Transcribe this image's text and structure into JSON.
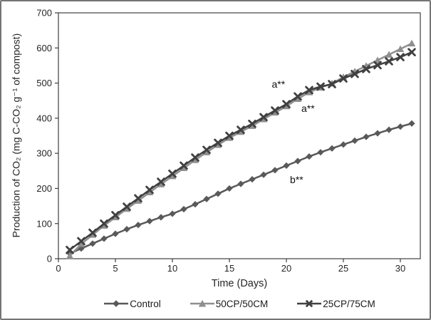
{
  "chart_data": {
    "type": "line",
    "title": "",
    "xlabel": "Time (Days)",
    "ylabel": "Production of CO₂ (mg C-CO₂ g⁻¹ of compost)",
    "xlim": [
      0,
      31.75
    ],
    "ylim": [
      0,
      700
    ],
    "x_ticks": [
      0,
      5,
      10,
      15,
      20,
      25,
      30
    ],
    "y_ticks": [
      0,
      100,
      200,
      300,
      400,
      500,
      600,
      700
    ],
    "grid": false,
    "legend_position": "bottom",
    "x": [
      1,
      2,
      3,
      4,
      5,
      6,
      7,
      8,
      9,
      10,
      11,
      12,
      13,
      14,
      15,
      16,
      17,
      18,
      19,
      20,
      21,
      22,
      23,
      24,
      25,
      26,
      27,
      28,
      29,
      30,
      31
    ],
    "series": [
      {
        "name": "Control",
        "marker": "diamond",
        "color": "#595959",
        "values": [
          15,
          29,
          43,
          57,
          71,
          84,
          96,
          107,
          118,
          128,
          141,
          155,
          170,
          185,
          200,
          213,
          226,
          239,
          252,
          265,
          278,
          291,
          303,
          314,
          325,
          336,
          347,
          357,
          367,
          376,
          385
        ]
      },
      {
        "name": "50CP/50CM",
        "marker": "triangle",
        "color": "#8f8f8f",
        "values": [
          8,
          42,
          68,
          94,
          118,
          142,
          165,
          189,
          212,
          235,
          258,
          281,
          303,
          324,
          344,
          361,
          378,
          397,
          416,
          434,
          455,
          474,
          487,
          499,
          517,
          533,
          549,
          565,
          581,
          597,
          613
        ]
      },
      {
        "name": "25CP/75CM",
        "marker": "x",
        "color": "#404040",
        "values": [
          25,
          50,
          74,
          100,
          124,
          148,
          172,
          196,
          219,
          242,
          265,
          288,
          310,
          330,
          350,
          367,
          384,
          403,
          422,
          440,
          462,
          480,
          490,
          497,
          513,
          526,
          540,
          551,
          562,
          574,
          588
        ]
      }
    ],
    "annotations": [
      {
        "text": "a**",
        "day": 19.3,
        "value": 497
      },
      {
        "text": "a**",
        "day": 21.9,
        "value": 428
      },
      {
        "text": "b**",
        "day": 20.9,
        "value": 225
      }
    ],
    "axis_color": "#3f3f3f"
  }
}
